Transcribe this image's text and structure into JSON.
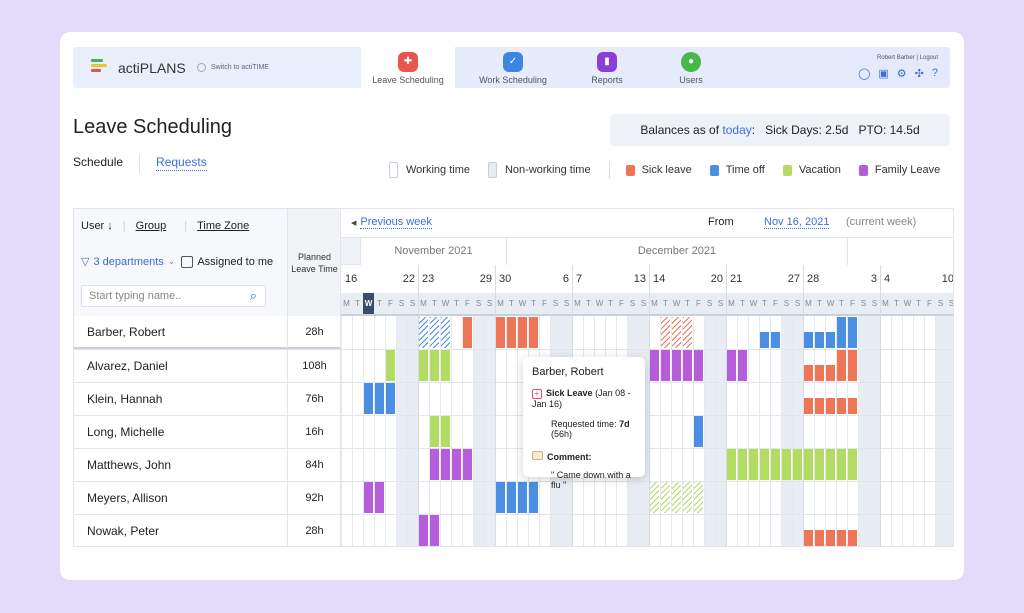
{
  "app": {
    "brand": "actiPLANS",
    "switch_label": "Switch to actiTIME",
    "user_name": "Robert Barber",
    "logout": "Logout",
    "tabs": [
      {
        "label": "Leave Scheduling",
        "color": "#e8554e",
        "active": true
      },
      {
        "label": "Work Scheduling",
        "color": "#3b86e0",
        "active": false
      },
      {
        "label": "Reports",
        "color": "#8b3fd9",
        "active": false
      },
      {
        "label": "Users",
        "color": "#47b84a",
        "active": false
      }
    ],
    "toolbar_icons": [
      "lightbulb-icon",
      "calendar-icon",
      "gear-icon",
      "puzzle-icon",
      "help-icon"
    ]
  },
  "page": {
    "title": "Leave Scheduling",
    "balances": {
      "prefix": "Balances as of",
      "today": "today",
      "sick": "Sick Days: 2.5d",
      "pto": "PTO: 14.5d"
    },
    "subtabs": [
      "Schedule",
      "Requests"
    ]
  },
  "legend": [
    {
      "label": "Working time",
      "kind": "working"
    },
    {
      "label": "Non-working time",
      "kind": "nonworking"
    },
    {
      "label": "Sick leave",
      "color": "#ee7656"
    },
    {
      "label": "Time off",
      "color": "#4a8fe3"
    },
    {
      "label": "Vacation",
      "color": "#b3dc62"
    },
    {
      "label": "Family Leave",
      "color": "#b65ddb"
    }
  ],
  "colors": {
    "sick": "#ee7656",
    "timeoff": "#4a8fe3",
    "vacation": "#b3dc62",
    "family": "#b65ddb"
  },
  "table": {
    "sort_user": "User ↓",
    "sort_group": "Group",
    "sort_tz": "Time Zone",
    "filter": "3 departments",
    "assigned": "Assigned to me",
    "search_placeholder": "Start typing name..",
    "planned_header": "Planned Leave Time",
    "rows": [
      {
        "name": "Barber, Robert",
        "planned": "28h",
        "events": [
          {
            "type": "timeoff",
            "from": "2021-11-23",
            "to": "2021-11-25",
            "pending": true
          },
          {
            "type": "sick",
            "from": "2021-11-27",
            "to": "2021-11-27"
          },
          {
            "type": "sick",
            "from": "2021-11-30",
            "to": "2021-12-03"
          },
          {
            "type": "sick",
            "from": "2021-12-15",
            "to": "2021-12-17",
            "pending": true
          },
          {
            "type": "timeoff",
            "from": "2021-12-24",
            "to": "2021-12-25",
            "partial": 0.5
          },
          {
            "type": "timeoff",
            "from": "2021-12-28",
            "to": "2021-12-30",
            "partial": 0.5
          },
          {
            "type": "timeoff",
            "from": "2021-12-31",
            "to": "2022-01-01"
          }
        ]
      },
      {
        "name": "Alvarez, Daniel",
        "planned": "108h",
        "events": [
          {
            "type": "vacation",
            "from": "2021-11-20",
            "to": "2021-11-20"
          },
          {
            "type": "vacation",
            "from": "2021-11-23",
            "to": "2021-11-25"
          },
          {
            "type": "family",
            "from": "2021-12-14",
            "to": "2021-12-18"
          },
          {
            "type": "family",
            "from": "2021-12-21",
            "to": "2021-12-22"
          },
          {
            "type": "sick",
            "from": "2021-12-28",
            "to": "2021-12-30",
            "partial": 0.5
          },
          {
            "type": "sick",
            "from": "2021-12-31",
            "to": "2022-01-01"
          }
        ]
      },
      {
        "name": "Klein, Hannah",
        "planned": "76h",
        "events": [
          {
            "type": "timeoff",
            "from": "2021-11-18",
            "to": "2021-11-20"
          },
          {
            "type": "sick",
            "from": "2021-12-28",
            "to": "2022-01-01",
            "partial": 0.5
          }
        ]
      },
      {
        "name": "Long, Michelle",
        "planned": "16h",
        "events": [
          {
            "type": "vacation",
            "from": "2021-11-24",
            "to": "2021-11-25"
          },
          {
            "type": "timeoff",
            "from": "2021-12-18",
            "to": "2021-12-18"
          }
        ]
      },
      {
        "name": "Matthews, John",
        "planned": "84h",
        "events": [
          {
            "type": "family",
            "from": "2021-11-24",
            "to": "2021-11-27"
          },
          {
            "type": "vacation",
            "from": "2021-12-21",
            "to": "2022-01-01"
          }
        ]
      },
      {
        "name": "Meyers, Allison",
        "planned": "92h",
        "events": [
          {
            "type": "family",
            "from": "2021-11-18",
            "to": "2021-11-19"
          },
          {
            "type": "timeoff",
            "from": "2021-11-30",
            "to": "2021-12-03"
          },
          {
            "type": "vacation",
            "from": "2021-12-14",
            "to": "2021-12-18",
            "pending": true
          }
        ]
      },
      {
        "name": "Nowak, Peter",
        "planned": "28h",
        "events": [
          {
            "type": "family",
            "from": "2021-11-23",
            "to": "2021-11-24"
          },
          {
            "type": "sick",
            "from": "2021-12-28",
            "to": "2022-01-01",
            "partial": 0.5
          }
        ]
      }
    ]
  },
  "calendar": {
    "prev_week": "Previous week",
    "from_label": "From",
    "from_date": "Nov 16, 2021",
    "current_week": "(current week)",
    "start": "2021-11-16",
    "today": "2021-11-18",
    "months": [
      {
        "label": "November 2021",
        "days": 15
      },
      {
        "label": "December 2021",
        "days": 31
      },
      {
        "label": "",
        "days": 10
      }
    ],
    "weeks": [
      {
        "first": "16",
        "last": "22"
      },
      {
        "first": "23",
        "last": "29"
      },
      {
        "first": "30",
        "last": "6"
      },
      {
        "first": "7",
        "last": "13"
      },
      {
        "first": "14",
        "last": "20"
      },
      {
        "first": "21",
        "last": "27"
      },
      {
        "first": "28",
        "last": "3"
      },
      {
        "first": "4",
        "last": "10"
      }
    ],
    "day_letters": [
      "M",
      "T",
      "W",
      "T",
      "F",
      "S",
      "S"
    ]
  },
  "tooltip": {
    "name": "Barber, Robert",
    "type": "Sick Leave",
    "range": "(Jan 08 - Jan 16)",
    "requested_label": "Requested time:",
    "requested_days": "7d",
    "requested_hours": "(56h)",
    "comment_label": "Comment:",
    "comment": "\" Came down with a flu \""
  }
}
